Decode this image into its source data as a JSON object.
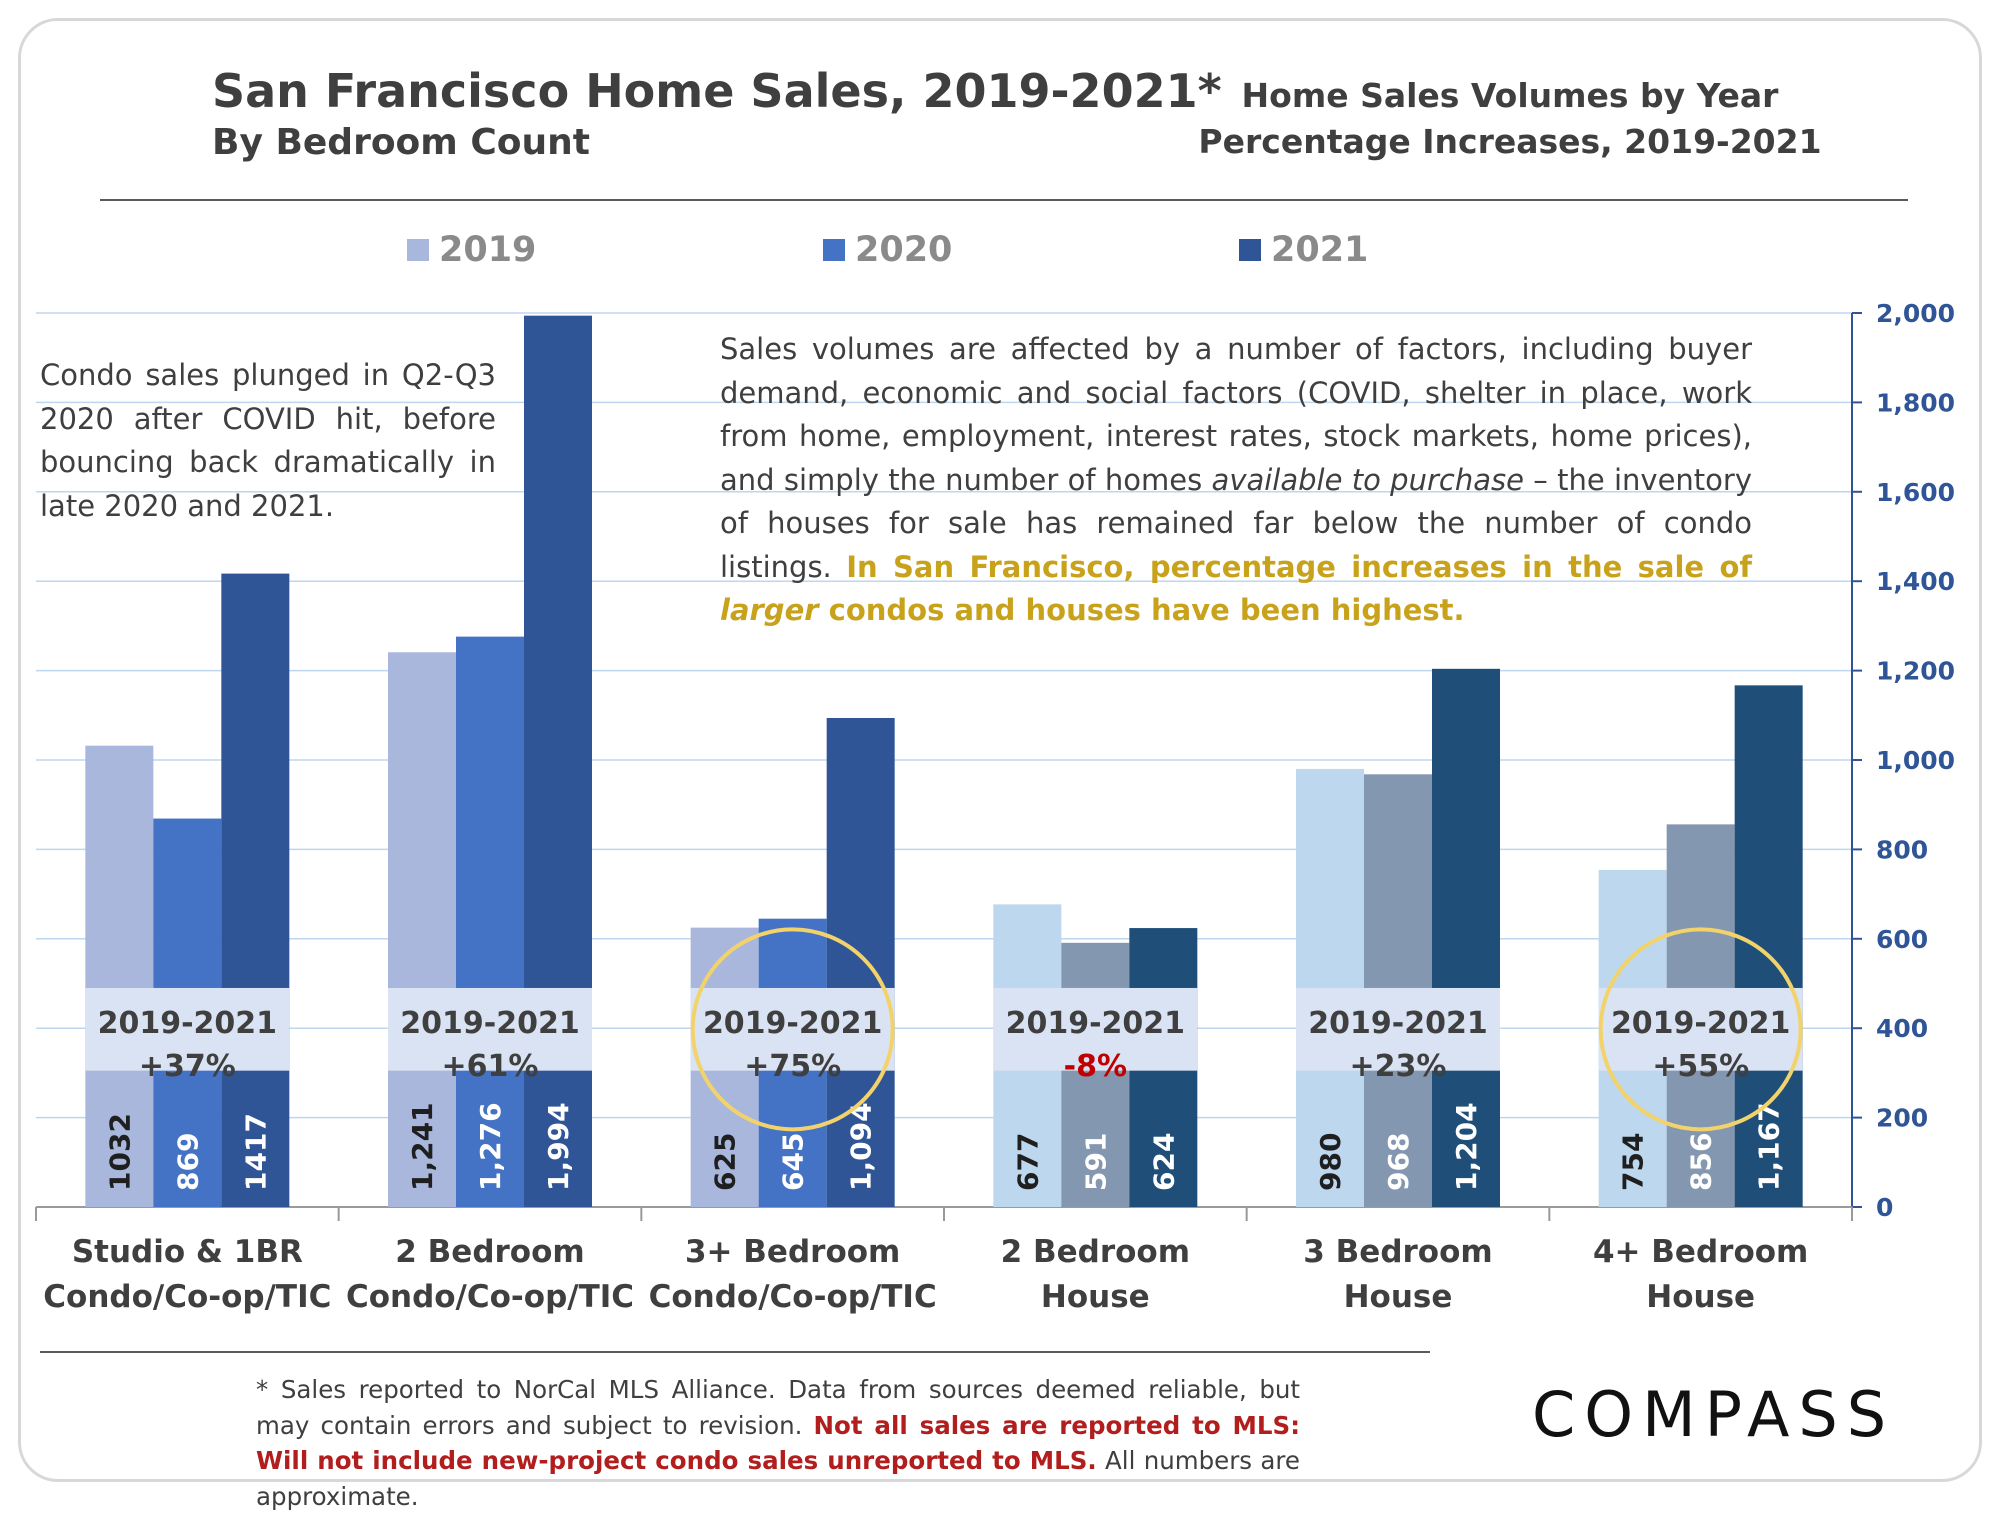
{
  "header": {
    "title": "San Francisco Home Sales, 2019-2021*",
    "subtitle": "By Bedroom Count",
    "right_title_1": "Home Sales Volumes by Year",
    "right_title_2": "Percentage Increases, 2019-2021"
  },
  "annotations": {
    "left": "Condo sales plunged in Q2-Q3 2020 after COVID hit, before bouncing back dramatically in late 2020 and 2021.",
    "mid_part1": "Sales volumes are affected by a number of factors, including  buyer demand, economic and social factors (COVID, shelter in place, work from home, employment, interest rates, stock markets, home prices), and simply the number of homes ",
    "mid_italic": "available to purchase",
    "mid_part2": " – the inventory of houses for sale has remained far below the number of condo listings. ",
    "mid_highlight1": "In San Francisco, percentage increases in the sale of ",
    "mid_highlight_italic": "larger",
    "mid_highlight2": " condos and houses have been highest."
  },
  "footer": {
    "note_part1": "* Sales reported to NorCal MLS Alliance. Data from sources deemed reliable, but may contain errors and subject to revision.  ",
    "note_red": "Not all sales are reported to MLS: Will not include new-project condo sales unreported to MLS.",
    "note_part2": " All numbers are approximate.",
    "logo": "COMPASS"
  },
  "colors": {
    "condo": [
      "#a9b7dc",
      "#4472c4",
      "#2f5597"
    ],
    "house": [
      "#bdd7ee",
      "#8497b0",
      "#1f4e79"
    ],
    "axis": "#2f5597",
    "gridline": "#bdd7ee",
    "badge_bg": "#dae3f3",
    "circle": "#f2d36b",
    "negative": "#c00000"
  },
  "chart_data": {
    "type": "bar",
    "legend": [
      "2019",
      "2020",
      "2021"
    ],
    "legend_position": "top",
    "categories": [
      [
        "Studio & 1BR",
        "Condo/Co-op/TIC"
      ],
      [
        "2 Bedroom",
        "Condo/Co-op/TIC"
      ],
      [
        "3+ Bedroom",
        "Condo/Co-op/TIC"
      ],
      [
        "2 Bedroom",
        "House"
      ],
      [
        "3 Bedroom",
        "House"
      ],
      [
        "4+ Bedroom",
        "House"
      ]
    ],
    "series": [
      {
        "name": "2019",
        "values": [
          1032,
          1241,
          625,
          677,
          980,
          754
        ]
      },
      {
        "name": "2020",
        "values": [
          869,
          1276,
          645,
          591,
          968,
          856
        ]
      },
      {
        "name": "2021",
        "values": [
          1417,
          1994,
          1094,
          624,
          1204,
          1167
        ]
      }
    ],
    "value_labels": [
      [
        "1032",
        "869",
        "1417"
      ],
      [
        "1,241",
        "1,276",
        "1,994"
      ],
      [
        "625",
        "645",
        "1,094"
      ],
      [
        "677",
        "591",
        "624"
      ],
      [
        "980",
        "968",
        "1,204"
      ],
      [
        "754",
        "856",
        "1,167"
      ]
    ],
    "change_label": "2019-2021",
    "changes": [
      "+37%",
      "+61%",
      "+75%",
      "-8%",
      "+23%",
      "+55%"
    ],
    "highlighted_categories": [
      2,
      5
    ],
    "y_axis_side": "right",
    "ylim": [
      0,
      2000
    ],
    "yticks": [
      0,
      200,
      400,
      600,
      800,
      1000,
      1200,
      1400,
      1600,
      1800,
      2000
    ],
    "ytick_labels": [
      "0",
      "200",
      "400",
      "600",
      "800",
      "1,000",
      "1,200",
      "1,400",
      "1,600",
      "1,800",
      "2,000"
    ],
    "grid": true
  }
}
